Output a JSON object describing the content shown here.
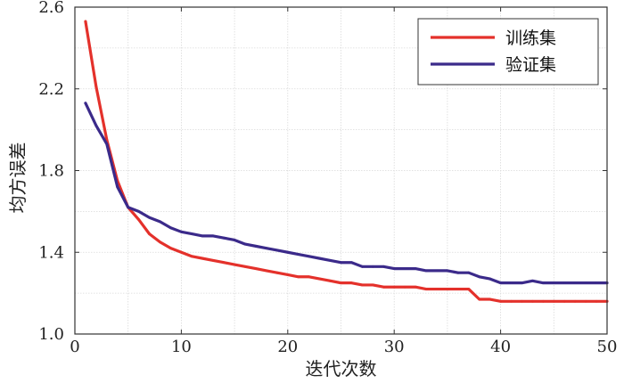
{
  "chart_data": {
    "type": "line",
    "title": "",
    "xlabel": "迭代次数",
    "ylabel": "均方误差",
    "xlim": [
      0,
      50
    ],
    "ylim": [
      1.0,
      2.6
    ],
    "xticks": [
      "0",
      "10",
      "20",
      "30",
      "40",
      "50"
    ],
    "yticks": [
      "1.0",
      "1.4",
      "1.8",
      "2.2",
      "2.6"
    ],
    "grid": true,
    "legend": "top-right",
    "x": [
      1,
      2,
      3,
      4,
      5,
      6,
      7,
      8,
      9,
      10,
      11,
      12,
      13,
      14,
      15,
      16,
      17,
      18,
      19,
      20,
      21,
      22,
      23,
      24,
      25,
      26,
      27,
      28,
      29,
      30,
      31,
      32,
      33,
      34,
      35,
      36,
      37,
      38,
      39,
      40,
      41,
      42,
      43,
      44,
      45,
      46,
      47,
      48,
      49,
      50
    ],
    "series": [
      {
        "name": "训练集",
        "color": "#e4312b",
        "values": [
          2.53,
          2.21,
          1.95,
          1.75,
          1.62,
          1.56,
          1.49,
          1.45,
          1.42,
          1.4,
          1.38,
          1.37,
          1.36,
          1.35,
          1.34,
          1.33,
          1.32,
          1.31,
          1.3,
          1.29,
          1.28,
          1.28,
          1.27,
          1.26,
          1.25,
          1.25,
          1.24,
          1.24,
          1.23,
          1.23,
          1.23,
          1.23,
          1.22,
          1.22,
          1.22,
          1.22,
          1.22,
          1.17,
          1.17,
          1.16,
          1.16,
          1.16,
          1.16,
          1.16,
          1.16,
          1.16,
          1.16,
          1.16,
          1.16,
          1.16
        ]
      },
      {
        "name": "验证集",
        "color": "#3b2a8a",
        "values": [
          2.13,
          2.02,
          1.93,
          1.72,
          1.62,
          1.6,
          1.57,
          1.55,
          1.52,
          1.5,
          1.49,
          1.48,
          1.48,
          1.47,
          1.46,
          1.44,
          1.43,
          1.42,
          1.41,
          1.4,
          1.39,
          1.38,
          1.37,
          1.36,
          1.35,
          1.35,
          1.33,
          1.33,
          1.33,
          1.32,
          1.32,
          1.32,
          1.31,
          1.31,
          1.31,
          1.3,
          1.3,
          1.28,
          1.27,
          1.25,
          1.25,
          1.25,
          1.26,
          1.25,
          1.25,
          1.25,
          1.25,
          1.25,
          1.25,
          1.25
        ]
      }
    ]
  }
}
